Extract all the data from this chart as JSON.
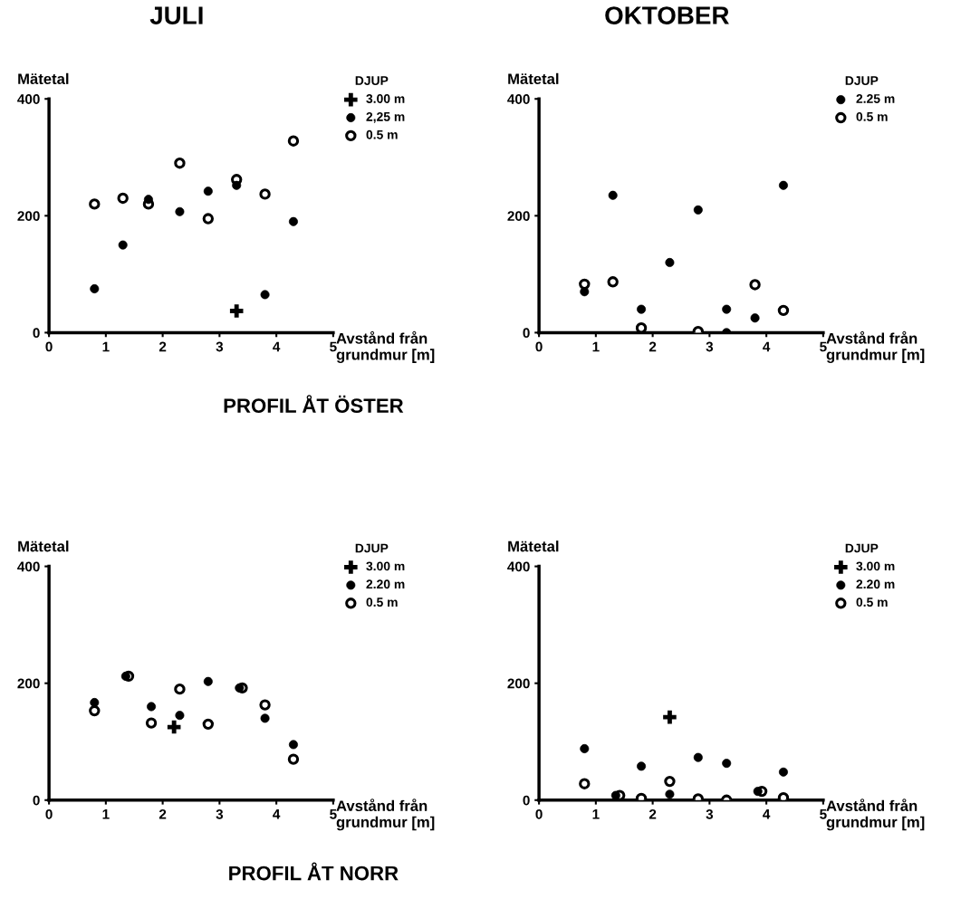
{
  "chart_data": [
    {
      "type": "scatter",
      "title": "JULI",
      "ylabel": "Mätetal",
      "xlabel": "Avstånd från\ngrundmur [m]",
      "legend_title": "DJUP",
      "legend": "top right",
      "xlim": [
        0,
        5
      ],
      "ylim": [
        0,
        400
      ],
      "xticks": [
        0,
        1,
        2,
        3,
        4,
        5
      ],
      "yticks": [
        0,
        200,
        400
      ],
      "grid": false,
      "annotations": [
        "PROFIL ÅT ÖSTER"
      ],
      "series": [
        {
          "name": "3.00 m",
          "color": "#000000",
          "marker": "cross",
          "x": [
            3.3
          ],
          "values": [
            37
          ]
        },
        {
          "name": "2,25 m",
          "color": "#000000",
          "marker": "circle",
          "x": [
            0.8,
            1.3,
            1.75,
            2.3,
            2.8,
            3.3,
            3.8,
            4.3
          ],
          "values": [
            75,
            150,
            228,
            207,
            242,
            252,
            65,
            190
          ]
        },
        {
          "name": "0.5 m",
          "color": "#ffffff",
          "marker": "circle",
          "x": [
            0.8,
            1.3,
            1.75,
            2.3,
            2.8,
            3.3,
            3.8,
            4.3
          ],
          "values": [
            220,
            230,
            220,
            290,
            195,
            262,
            237,
            328
          ]
        }
      ]
    },
    {
      "type": "scatter",
      "title": "OKTOBER",
      "ylabel": "Mätetal",
      "xlabel": "Avstånd från\ngrundmur [m]",
      "legend_title": "DJUP",
      "legend": "top right",
      "xlim": [
        0,
        5
      ],
      "ylim": [
        0,
        400
      ],
      "xticks": [
        0,
        1,
        2,
        3,
        4,
        5
      ],
      "yticks": [
        0,
        200,
        400
      ],
      "grid": false,
      "series": [
        {
          "name": "2.25 m",
          "color": "#000000",
          "marker": "circle",
          "x": [
            0.8,
            1.3,
            1.8,
            2.3,
            2.8,
            3.3,
            3.3,
            3.8,
            4.3
          ],
          "values": [
            70,
            235,
            40,
            120,
            210,
            40,
            0,
            25,
            252
          ]
        },
        {
          "name": "0.5 m",
          "color": "#ffffff",
          "marker": "circle",
          "x": [
            0.8,
            1.3,
            1.8,
            2.8,
            3.8,
            4.3
          ],
          "values": [
            83,
            87,
            8,
            2,
            82,
            38
          ]
        }
      ]
    },
    {
      "type": "scatter",
      "ylabel": "Mätetal",
      "xlabel": "Avstånd från\ngrundmur [m]",
      "legend_title": "DJUP",
      "legend": "top right",
      "xlim": [
        0,
        5
      ],
      "ylim": [
        0,
        400
      ],
      "xticks": [
        0,
        1,
        2,
        3,
        4,
        5
      ],
      "yticks": [
        0,
        200,
        400
      ],
      "grid": false,
      "annotations": [
        "PROFIL ÅT NORR"
      ],
      "series": [
        {
          "name": "3.00 m",
          "color": "#000000",
          "marker": "cross",
          "x": [
            2.2
          ],
          "values": [
            125
          ]
        },
        {
          "name": "2.20 m",
          "color": "#000000",
          "marker": "circle",
          "x": [
            0.8,
            1.35,
            1.8,
            2.3,
            2.8,
            3.35,
            3.8,
            4.3
          ],
          "values": [
            167,
            212,
            160,
            145,
            203,
            192,
            140,
            95
          ]
        },
        {
          "name": "0.5 m",
          "color": "#ffffff",
          "marker": "circle",
          "x": [
            0.8,
            1.4,
            1.8,
            2.3,
            2.8,
            3.4,
            3.8,
            4.3
          ],
          "values": [
            153,
            212,
            132,
            190,
            130,
            192,
            163,
            70
          ]
        }
      ]
    },
    {
      "type": "scatter",
      "ylabel": "Mätetal",
      "xlabel": "Avstånd från\ngrundmur [m]",
      "legend_title": "DJUP",
      "legend": "top right",
      "xlim": [
        0,
        5
      ],
      "ylim": [
        0,
        400
      ],
      "xticks": [
        0,
        1,
        2,
        3,
        4,
        5
      ],
      "yticks": [
        0,
        200,
        400
      ],
      "grid": false,
      "series": [
        {
          "name": "3.00 m",
          "color": "#000000",
          "marker": "cross",
          "x": [
            2.3
          ],
          "values": [
            142
          ]
        },
        {
          "name": "2.20 m",
          "color": "#000000",
          "marker": "circle",
          "x": [
            0.8,
            1.35,
            1.8,
            2.3,
            2.8,
            3.3,
            3.85,
            4.3
          ],
          "values": [
            88,
            8,
            58,
            10,
            73,
            63,
            15,
            48
          ]
        },
        {
          "name": "0.5 m",
          "color": "#ffffff",
          "marker": "circle",
          "x": [
            0.8,
            1.42,
            1.8,
            2.3,
            2.8,
            3.3,
            3.92,
            4.3
          ],
          "values": [
            28,
            8,
            3,
            32,
            2,
            0,
            15,
            4
          ]
        }
      ]
    }
  ]
}
